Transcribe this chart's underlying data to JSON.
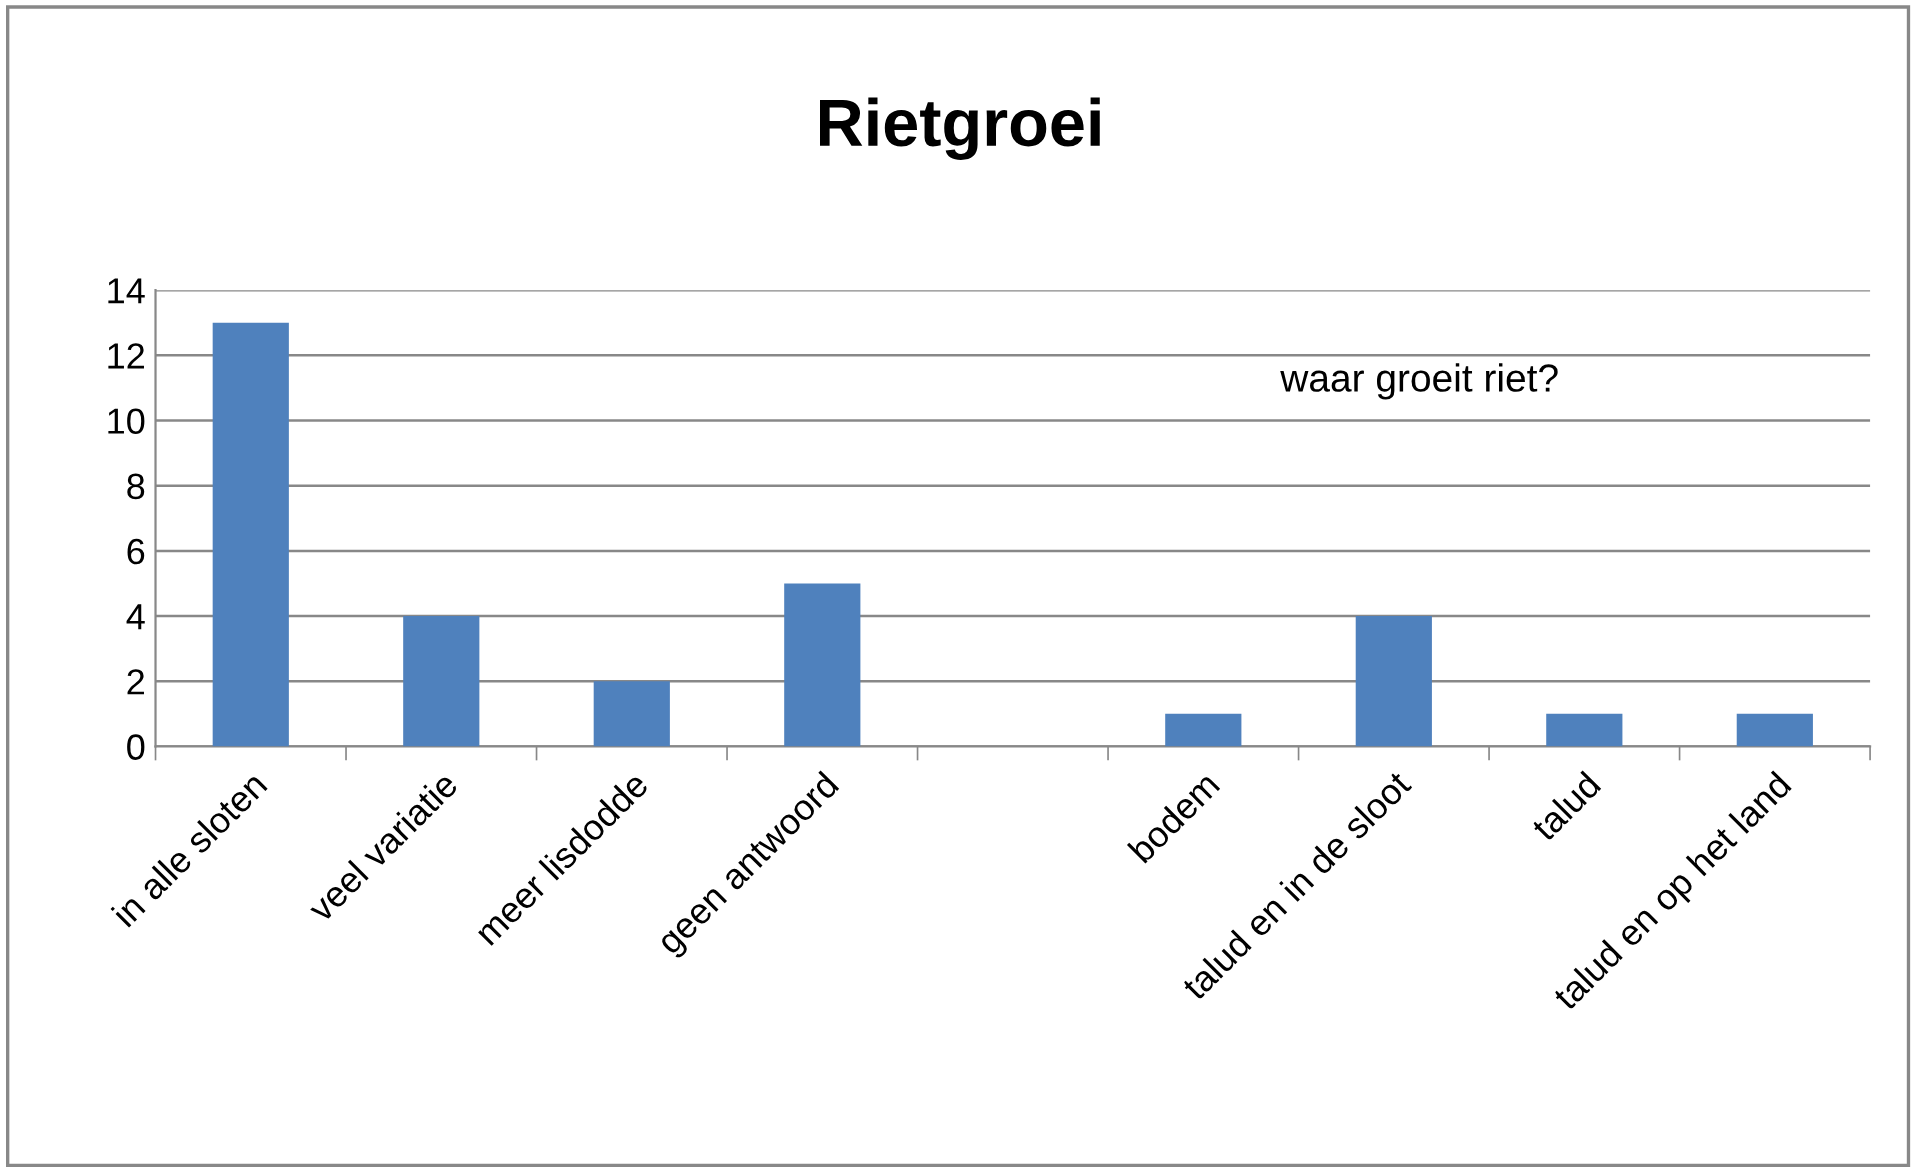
{
  "chart_data": {
    "type": "bar",
    "title": "Rietgroei",
    "categories": [
      "in alle sloten",
      "veel variatie",
      "meer lisdodde",
      "geen antwoord",
      null,
      "bodem",
      "talud en in de sloot",
      "talud",
      "talud en op het land"
    ],
    "values": [
      13,
      4,
      2,
      5,
      null,
      1,
      4,
      1,
      1
    ],
    "color": "#4f81bd",
    "ylim": [
      0,
      14
    ],
    "yticks": [
      0,
      2,
      4,
      6,
      8,
      10,
      12,
      14
    ],
    "grid": "y",
    "legend": false,
    "annotations": [
      "waar groeit riet?"
    ]
  }
}
